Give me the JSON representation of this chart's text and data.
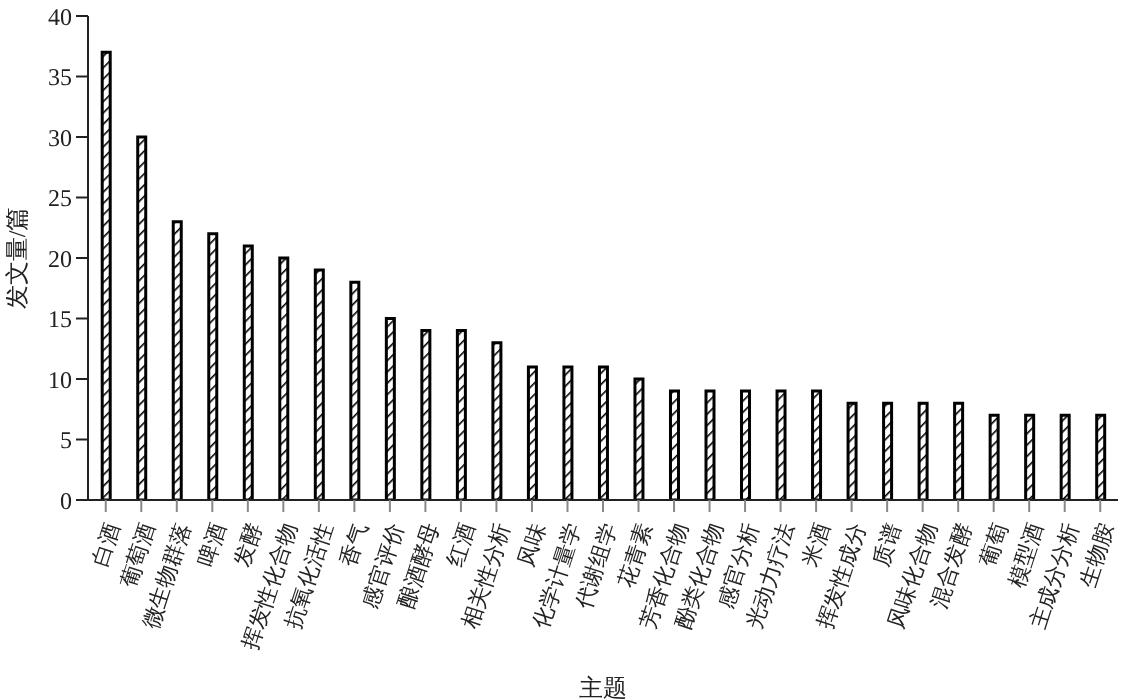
{
  "chart_data": {
    "type": "bar",
    "xlabel": "主题",
    "ylabel": "发文量/篇",
    "categories": [
      "白酒",
      "葡萄酒",
      "微生物群落",
      "啤酒",
      "发酵",
      "挥发性化合物",
      "抗氧化活性",
      "香气",
      "感官评价",
      "酿酒酵母",
      "红酒",
      "相关性分析",
      "风味",
      "化学计量学",
      "代谢组学",
      "花青素",
      "芳香化合物",
      "酚类化合物",
      "感官分析",
      "光动力疗法",
      "米酒",
      "挥发性成分",
      "质谱",
      "风味化合物",
      "混合发酵",
      "葡萄",
      "模型酒",
      "主成分分析",
      "生物胺"
    ],
    "values": [
      37,
      30,
      23,
      22,
      21,
      20,
      19,
      18,
      15,
      14,
      14,
      13,
      11,
      11,
      11,
      10,
      9,
      9,
      9,
      9,
      9,
      8,
      8,
      8,
      8,
      7,
      7,
      7,
      7
    ],
    "color": "#000000",
    "ylim": [
      0,
      40
    ],
    "yticks": [
      0,
      5,
      10,
      15,
      20,
      25,
      30,
      35,
      40
    ],
    "grid": false,
    "legend": false
  }
}
